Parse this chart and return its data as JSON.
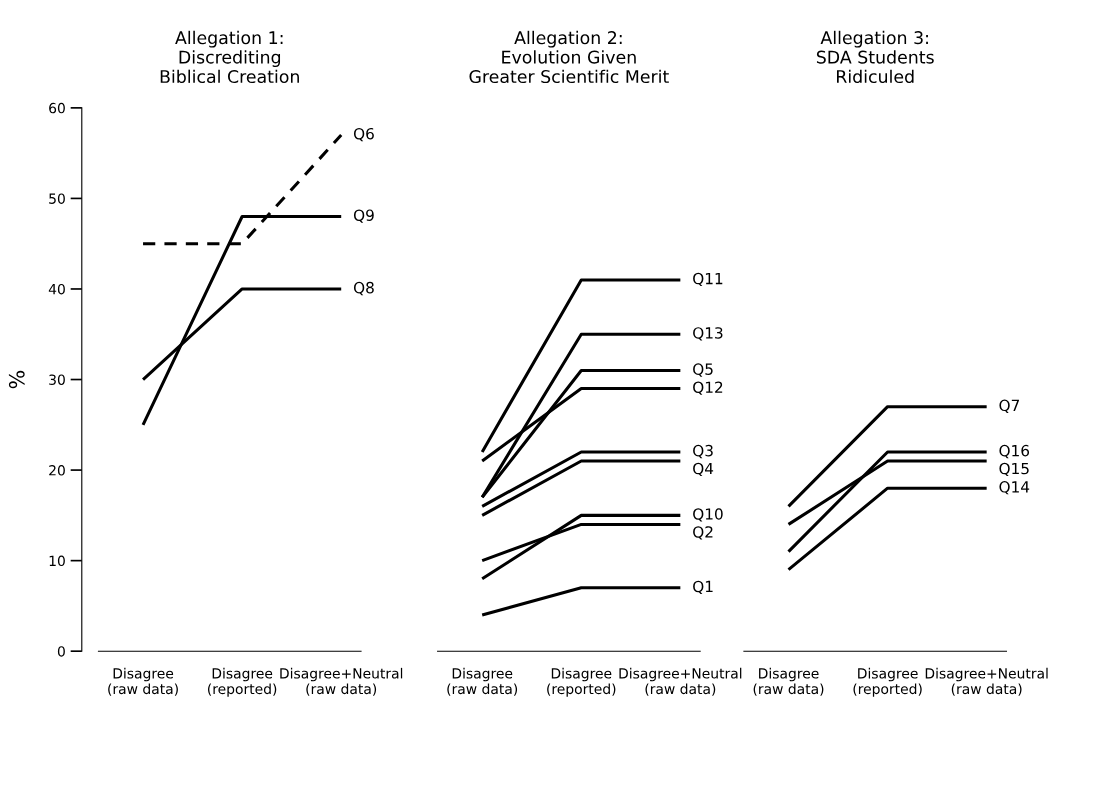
{
  "chart_data": [
    {
      "type": "line",
      "title": "Allegation 1:\nDiscrediting\nBiblical Creation",
      "ylabel": "%",
      "categories": [
        "Disagree\n(raw data)",
        "Disagree\n(reported)",
        "Disagree+Neutral\n(raw data)"
      ],
      "ylim": [
        0,
        60
      ],
      "yticks": [
        0,
        10,
        20,
        30,
        40,
        50,
        60
      ],
      "series": [
        {
          "name": "Q6",
          "color": "#000000",
          "line_style": "dashed",
          "values": [
            45,
            45,
            57
          ]
        },
        {
          "name": "Q9",
          "color": "#000000",
          "values": [
            25,
            48,
            48
          ]
        },
        {
          "name": "Q8",
          "color": "#000000",
          "values": [
            30,
            40,
            40
          ]
        }
      ]
    },
    {
      "type": "line",
      "title": "Allegation 2:\nEvolution Given\nGreater Scientific Merit",
      "categories": [
        "Disagree\n(raw data)",
        "Disagree\n(reported)",
        "Disagree+Neutral\n(raw data)"
      ],
      "ylim": [
        0,
        60
      ],
      "tick_labels": "x",
      "series": [
        {
          "name": "Q11",
          "color": "#000000",
          "values": [
            22,
            41,
            41
          ]
        },
        {
          "name": "Q13",
          "color": "#000000",
          "values": [
            17,
            35,
            35
          ]
        },
        {
          "name": "Q5",
          "color": "#000000",
          "values": [
            17,
            31,
            31
          ]
        },
        {
          "name": "Q12",
          "color": "#000000",
          "values": [
            21,
            29,
            29
          ]
        },
        {
          "name": "Q3",
          "color": "#000000",
          "values": [
            16,
            22,
            22
          ]
        },
        {
          "name": "Q4",
          "color": "#000000",
          "values": [
            15,
            21,
            21
          ]
        },
        {
          "name": "Q10",
          "color": "#000000",
          "values": [
            8,
            15,
            15
          ]
        },
        {
          "name": "Q2",
          "color": "#000000",
          "values": [
            10,
            14,
            14
          ]
        },
        {
          "name": "Q1",
          "color": "#000000",
          "values": [
            4,
            7,
            7
          ]
        }
      ]
    },
    {
      "type": "line",
      "title": "Allegation 3:\nSDA Students\nRidiculed",
      "categories": [
        "Disagree\n(raw data)",
        "Disagree\n(reported)",
        "Disagree+Neutral\n(raw data)"
      ],
      "ylim": [
        0,
        60
      ],
      "tick_labels": "x",
      "series": [
        {
          "name": "Q7",
          "color": "#000000",
          "values": [
            16,
            27,
            27
          ]
        },
        {
          "name": "Q16",
          "color": "#000000",
          "values": [
            11,
            22,
            22
          ]
        },
        {
          "name": "Q15",
          "color": "#000000",
          "values": [
            14,
            21,
            21
          ]
        },
        {
          "name": "Q14",
          "color": "#000000",
          "values": [
            9,
            18,
            18
          ]
        }
      ]
    }
  ]
}
